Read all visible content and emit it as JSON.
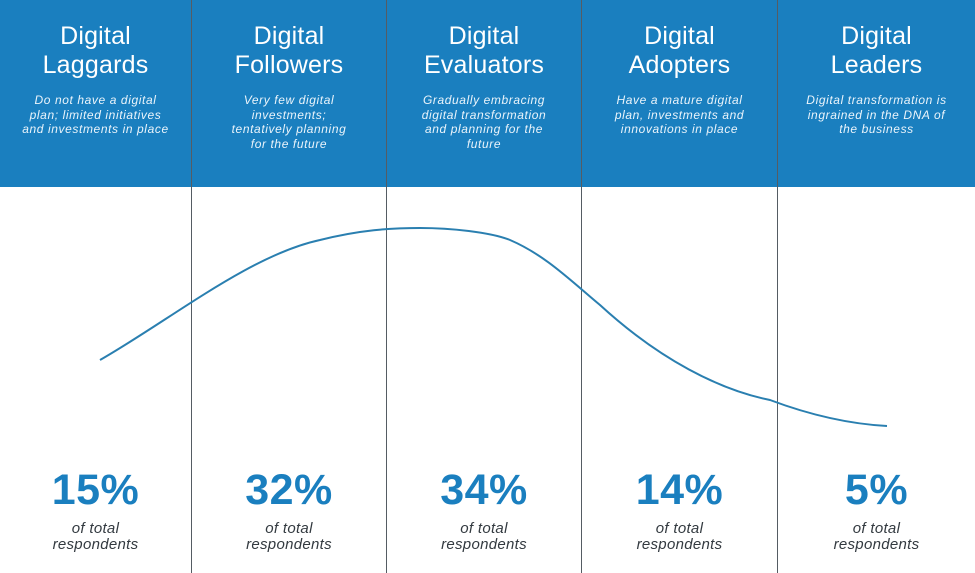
{
  "chart_data": {
    "type": "line",
    "categories": [
      "Digital Laggards",
      "Digital Followers",
      "Digital Evaluators",
      "Digital Adopters",
      "Digital Leaders"
    ],
    "values": [
      15,
      32,
      34,
      14,
      5
    ],
    "value_labels": [
      "15%",
      "32%",
      "34%",
      "14%",
      "5%"
    ],
    "sublabel_line1": "of total",
    "sublabel_line2": "respondents",
    "segments": [
      {
        "title_line1": "Digital",
        "title_line2": "Laggards",
        "description": "Do not have a digital plan; limited initiatives and investments in place",
        "value": 15,
        "value_label": "15%"
      },
      {
        "title_line1": "Digital",
        "title_line2": "Followers",
        "description": "Very few digital investments; tentatively planning for the future",
        "value": 32,
        "value_label": "32%"
      },
      {
        "title_line1": "Digital",
        "title_line2": "Evaluators",
        "description": "Gradually embracing digital transformation and planning for the future",
        "value": 34,
        "value_label": "34%"
      },
      {
        "title_line1": "Digital",
        "title_line2": "Adopters",
        "description": "Have a mature digital plan, investments and innovations in place",
        "value": 14,
        "value_label": "14%"
      },
      {
        "title_line1": "Digital",
        "title_line2": "Leaders",
        "description": "Digital transformation is ingrained in the DNA of the business",
        "value": 5,
        "value_label": "5%"
      }
    ],
    "grid": false,
    "legend": "none"
  },
  "colors": {
    "header_bg": "#1a7fbf",
    "header_text": "#ffffff",
    "accent": "#1a7fbf",
    "curve": "#2a7fb0",
    "divider": "#555c63",
    "subtext": "#333a40"
  }
}
